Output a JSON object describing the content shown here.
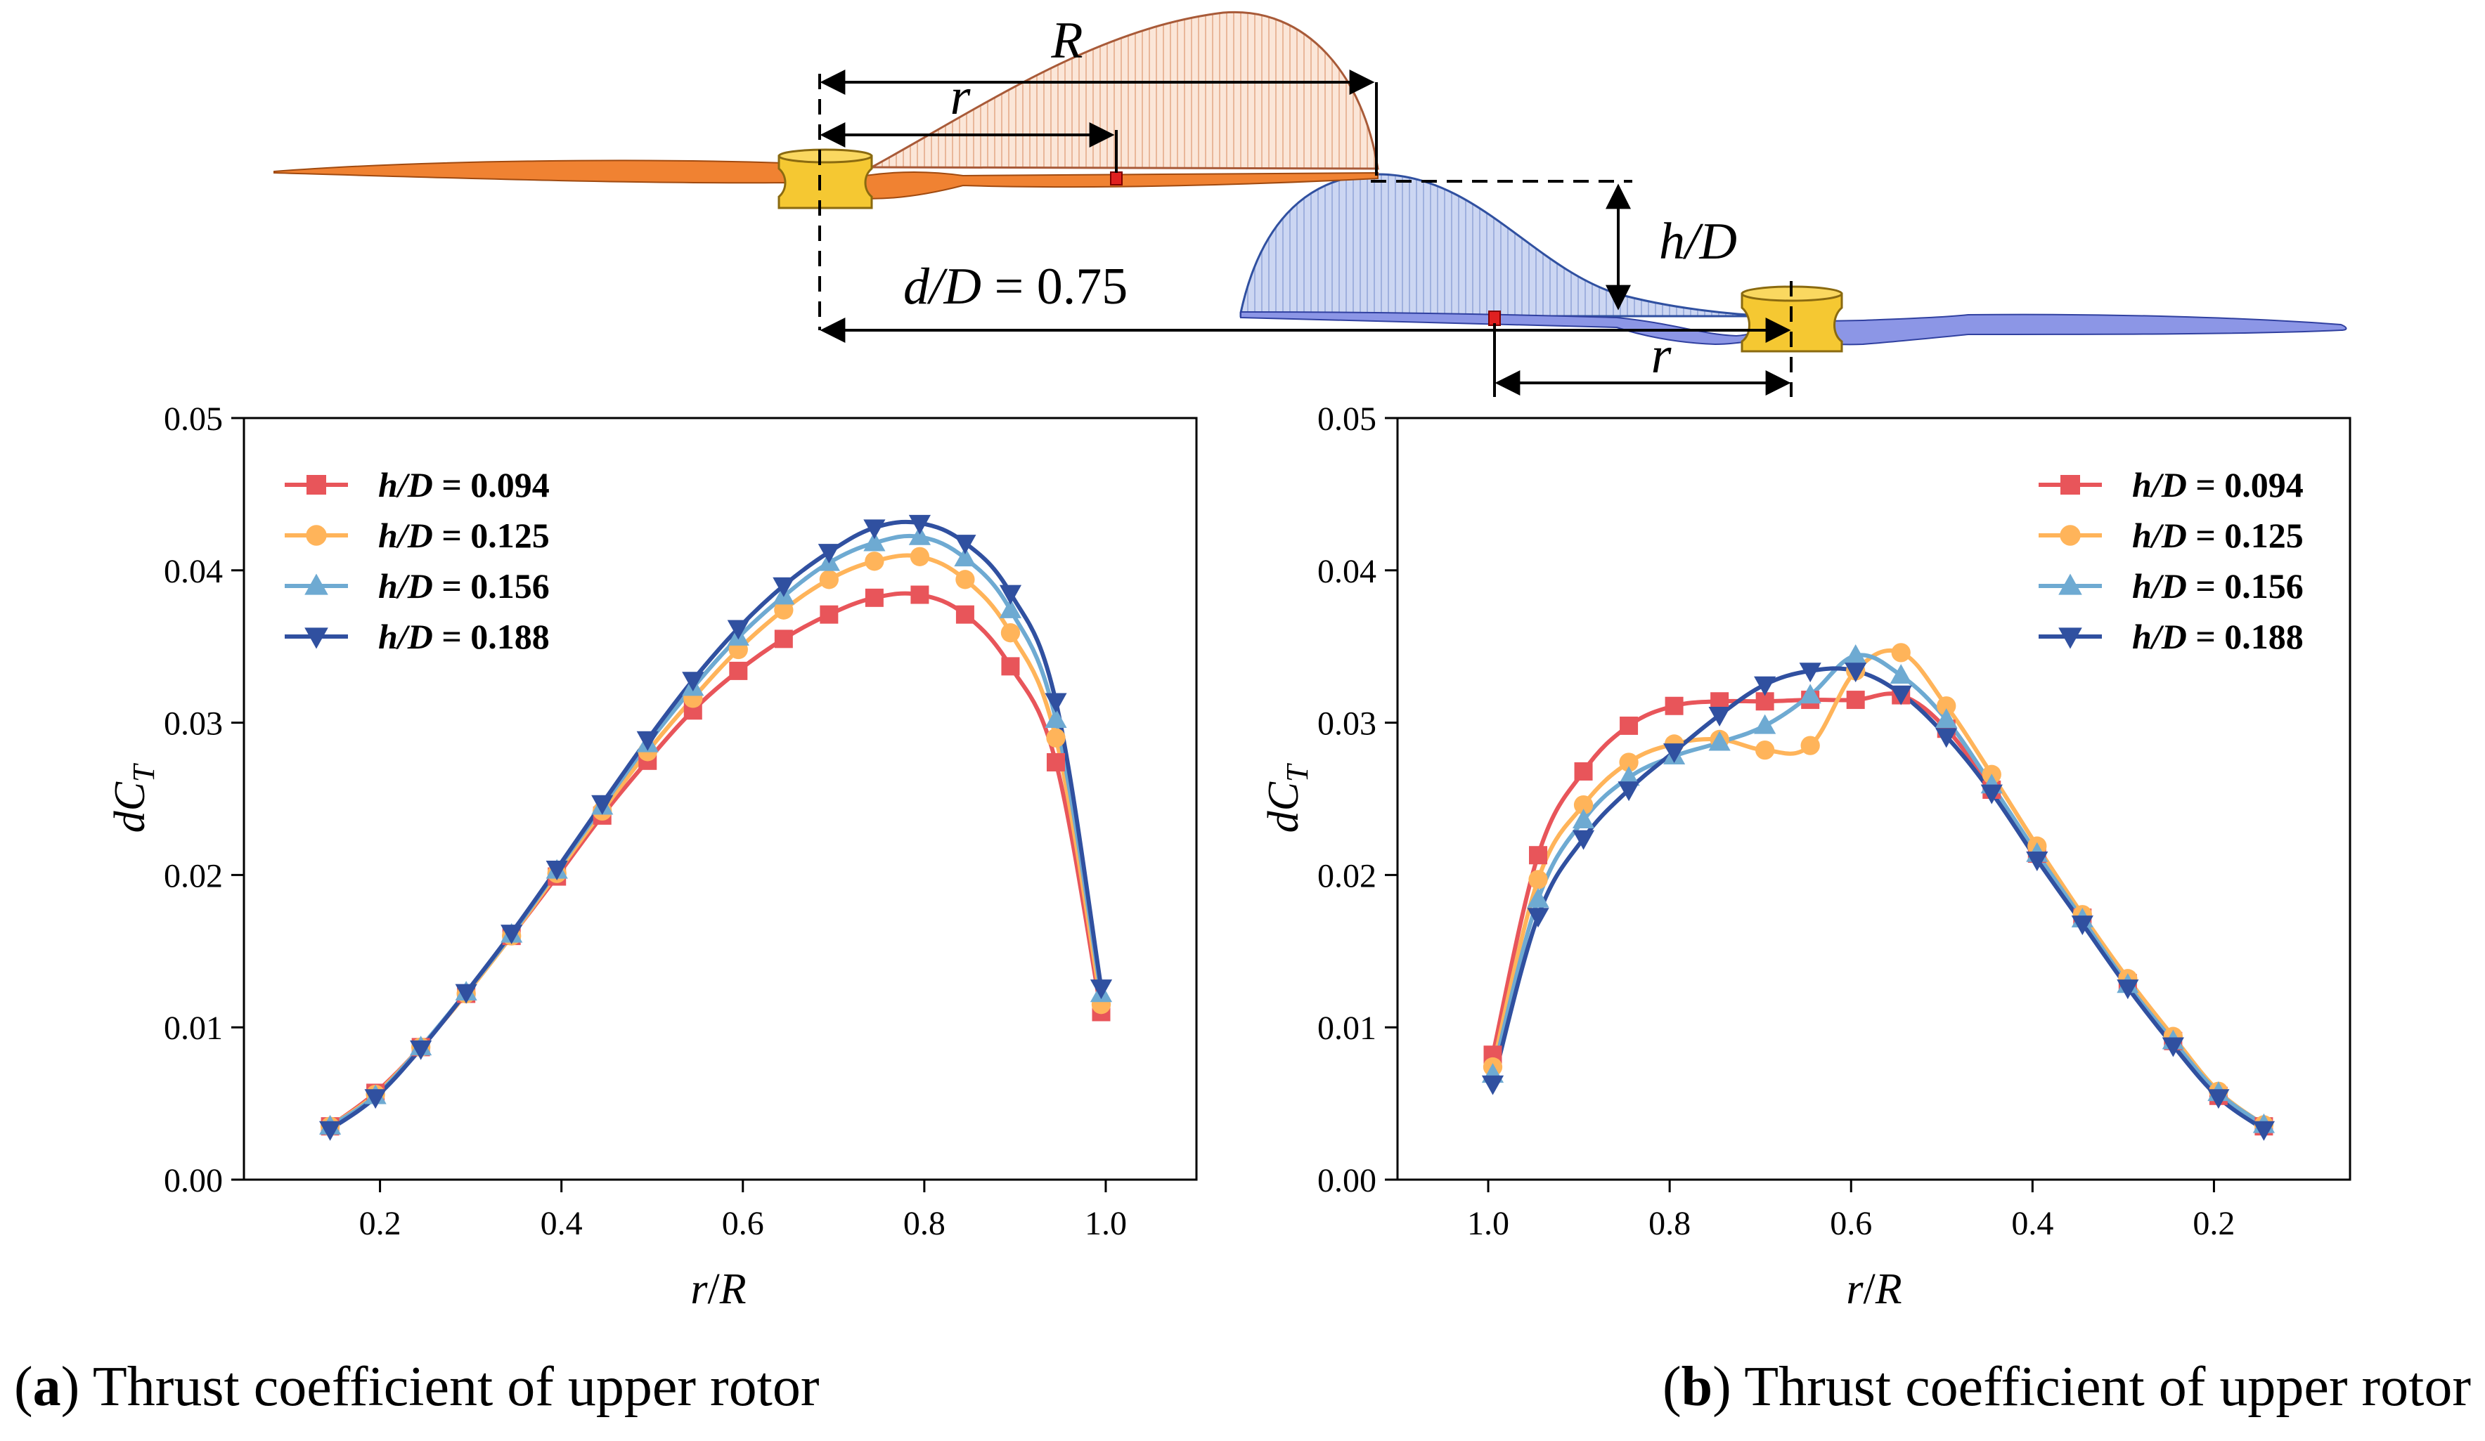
{
  "diagram": {
    "R_label": "R",
    "r_label_upper": "r",
    "r_label_lower": "r",
    "hD_label": "h/D",
    "dD_label_var": "d/D",
    "dD_label_value": " = 0.75"
  },
  "colors": {
    "upper_blade": "#F08232",
    "lower_blade": "#8C96E6",
    "hub": "#F5C832",
    "upper_load_fill": "#FBE3D4",
    "upper_load_line": "#B05A30",
    "lower_load_fill": "#C8D2F0",
    "lower_load_line": "#3050A0",
    "marker_red": "#E02020"
  },
  "captions": {
    "a_letter": "a",
    "a_text": " Thrust coefficient of upper rotor",
    "b_letter": "b",
    "b_text": " Thrust coefficient of upper rotor"
  },
  "chart_data": [
    {
      "type": "line",
      "id": "a",
      "title": "",
      "xlabel_var": "r",
      "xlabel_sep": "/",
      "xlabel_var2": "R",
      "ylabel_main": "dC",
      "ylabel_sub": "T",
      "xlim": [
        0.05,
        1.1
      ],
      "ylim": [
        0.0,
        0.05
      ],
      "x_reversed": false,
      "xticks": [
        0.2,
        0.4,
        0.6,
        0.8,
        1.0
      ],
      "xtick_labels": [
        "0.2",
        "0.4",
        "0.6",
        "0.8",
        "1.0"
      ],
      "yticks": [
        0.0,
        0.01,
        0.02,
        0.03,
        0.04,
        0.05
      ],
      "ytick_labels": [
        "0.00",
        "0.01",
        "0.02",
        "0.03",
        "0.04",
        "0.05"
      ],
      "legend_position": "top-left",
      "x": [
        0.145,
        0.195,
        0.245,
        0.295,
        0.345,
        0.395,
        0.445,
        0.495,
        0.545,
        0.595,
        0.645,
        0.695,
        0.745,
        0.795,
        0.845,
        0.895,
        0.945,
        0.995
      ],
      "series": [
        {
          "name_var": "h/D",
          "name_value": " = 0.094",
          "color": "#E8555A",
          "marker": "square",
          "values": [
            0.0035,
            0.0057,
            0.0087,
            0.0122,
            0.016,
            0.0199,
            0.0239,
            0.0275,
            0.0308,
            0.0334,
            0.0355,
            0.0371,
            0.0382,
            0.0384,
            0.0371,
            0.0337,
            0.0274,
            0.011
          ]
        },
        {
          "name_var": "h/D",
          "name_value": " = 0.125",
          "color": "#FFB45A",
          "marker": "circle",
          "values": [
            0.0035,
            0.0056,
            0.0087,
            0.0122,
            0.016,
            0.0201,
            0.0242,
            0.0281,
            0.0316,
            0.0348,
            0.0374,
            0.0394,
            0.0406,
            0.0409,
            0.0394,
            0.0359,
            0.029,
            0.0115
          ]
        },
        {
          "name_var": "h/D",
          "name_value": " = 0.156",
          "color": "#6EAAD2",
          "marker": "triangle-up",
          "values": [
            0.0035,
            0.0055,
            0.0087,
            0.0123,
            0.0161,
            0.0203,
            0.0245,
            0.0286,
            0.0323,
            0.0356,
            0.0383,
            0.0405,
            0.0418,
            0.0422,
            0.0408,
            0.0374,
            0.0302,
            0.0122
          ]
        },
        {
          "name_var": "h/D",
          "name_value": " = 0.188",
          "color": "#3050A0",
          "marker": "triangle-down",
          "values": [
            0.0033,
            0.0054,
            0.0086,
            0.0123,
            0.0162,
            0.0204,
            0.0247,
            0.0289,
            0.0328,
            0.0362,
            0.039,
            0.0412,
            0.0428,
            0.0431,
            0.0418,
            0.0385,
            0.0314,
            0.0126
          ]
        }
      ]
    },
    {
      "type": "line",
      "id": "b",
      "title": "",
      "xlabel_var": "r",
      "xlabel_sep": "/",
      "xlabel_var2": "R",
      "ylabel_main": "dC",
      "ylabel_sub": "T",
      "xlim": [
        1.1,
        0.05
      ],
      "ylim": [
        0.0,
        0.05
      ],
      "x_reversed": true,
      "xticks": [
        1.0,
        0.8,
        0.6,
        0.4,
        0.2
      ],
      "xtick_labels": [
        "1.0",
        "0.8",
        "0.6",
        "0.4",
        "0.2"
      ],
      "yticks": [
        0.0,
        0.01,
        0.02,
        0.03,
        0.04,
        0.05
      ],
      "ytick_labels": [
        "0.00",
        "0.01",
        "0.02",
        "0.03",
        "0.04",
        "0.05"
      ],
      "legend_position": "top-right",
      "x": [
        0.995,
        0.945,
        0.895,
        0.845,
        0.795,
        0.745,
        0.695,
        0.645,
        0.595,
        0.545,
        0.495,
        0.445,
        0.395,
        0.345,
        0.295,
        0.245,
        0.195,
        0.145
      ],
      "series": [
        {
          "name_var": "h/D",
          "name_value": " = 0.094",
          "color": "#E8555A",
          "marker": "square",
          "values": [
            0.0082,
            0.0213,
            0.0268,
            0.0298,
            0.0311,
            0.0314,
            0.0314,
            0.0315,
            0.0315,
            0.0318,
            0.0296,
            0.0256,
            0.0214,
            0.0172,
            0.0129,
            0.0091,
            0.0055,
            0.0035
          ]
        },
        {
          "name_var": "h/D",
          "name_value": " = 0.125",
          "color": "#FFB45A",
          "marker": "circle",
          "values": [
            0.0074,
            0.0197,
            0.0246,
            0.0274,
            0.0286,
            0.0289,
            0.0282,
            0.0285,
            0.0334,
            0.0346,
            0.0311,
            0.0266,
            0.0219,
            0.0174,
            0.0132,
            0.0094,
            0.0058,
            0.0036
          ]
        },
        {
          "name_var": "h/D",
          "name_value": " = 0.156",
          "color": "#6EAAD2",
          "marker": "triangle-up",
          "values": [
            0.0069,
            0.0184,
            0.0236,
            0.0264,
            0.0278,
            0.0287,
            0.0298,
            0.0318,
            0.0344,
            0.0331,
            0.0302,
            0.0259,
            0.0214,
            0.0171,
            0.0128,
            0.0091,
            0.0057,
            0.0036
          ]
        },
        {
          "name_var": "h/D",
          "name_value": " = 0.188",
          "color": "#3050A0",
          "marker": "triangle-down",
          "values": [
            0.0063,
            0.0173,
            0.0224,
            0.0256,
            0.0281,
            0.0305,
            0.0325,
            0.0334,
            0.0334,
            0.0319,
            0.0291,
            0.0254,
            0.021,
            0.0168,
            0.0126,
            0.0088,
            0.0054,
            0.0033
          ]
        }
      ]
    }
  ]
}
